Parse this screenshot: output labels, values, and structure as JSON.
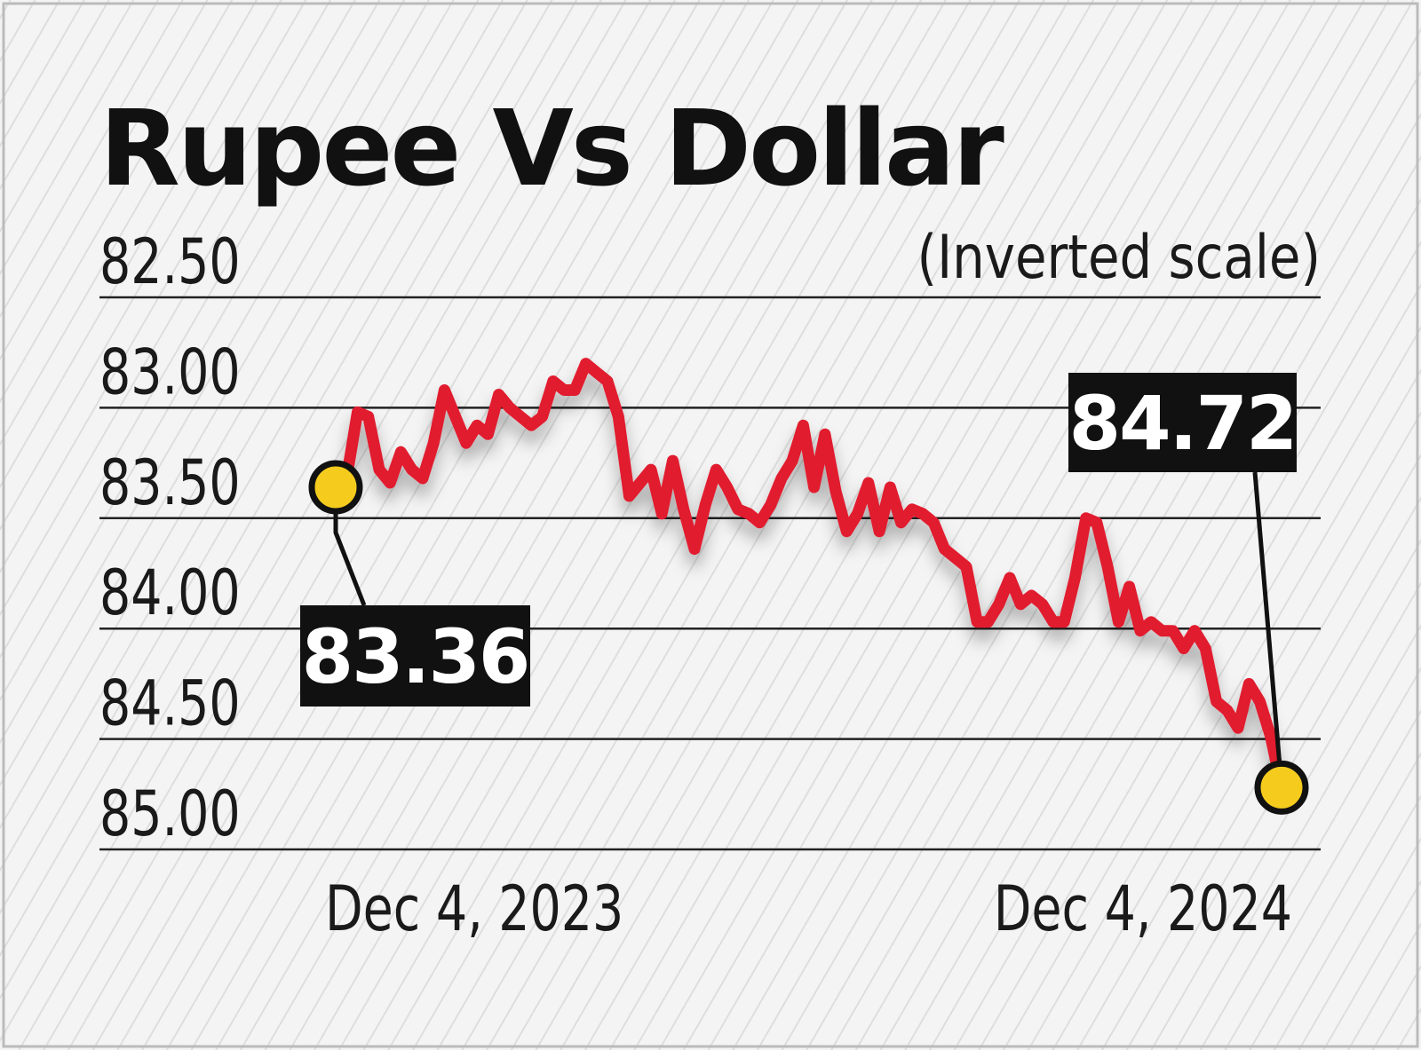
{
  "chart_data": {
    "type": "line",
    "title": "Rupee Vs Dollar",
    "subtitle": "(Inverted scale)",
    "categories": [
      "Dec 4, 2023",
      null,
      null,
      null,
      null,
      null,
      null,
      null,
      null,
      null,
      null,
      null,
      null,
      null,
      null,
      null,
      null,
      null,
      null,
      null,
      null,
      null,
      null,
      null,
      null,
      null,
      null,
      null,
      null,
      null,
      null,
      null,
      null,
      null,
      null,
      null,
      null,
      null,
      null,
      null,
      null,
      null,
      null,
      null,
      null,
      null,
      null,
      null,
      null,
      null,
      null,
      null,
      null,
      null,
      null,
      null,
      null,
      null,
      null,
      null,
      null,
      null,
      null,
      null,
      null,
      null,
      null,
      null,
      null,
      null,
      null,
      null,
      null,
      null,
      null,
      null,
      null,
      null,
      null,
      null,
      null,
      null,
      null,
      null,
      null,
      null,
      null,
      "Dec 4, 2024"
    ],
    "values": [
      83.36,
      83.32,
      83.02,
      83.04,
      83.28,
      83.34,
      83.2,
      83.28,
      83.32,
      83.16,
      82.92,
      83.04,
      83.16,
      83.08,
      83.12,
      82.94,
      83.0,
      83.04,
      83.08,
      83.04,
      82.88,
      82.92,
      82.92,
      82.8,
      82.84,
      82.88,
      83.04,
      83.4,
      83.34,
      83.28,
      83.48,
      83.24,
      83.46,
      83.64,
      83.44,
      83.28,
      83.36,
      83.46,
      83.48,
      83.52,
      83.44,
      83.32,
      83.24,
      83.08,
      83.36,
      83.12,
      83.38,
      83.56,
      83.48,
      83.34,
      83.56,
      83.36,
      83.52,
      83.46,
      83.48,
      83.52,
      83.64,
      83.68,
      83.72,
      83.97,
      83.97,
      83.89,
      83.77,
      83.89,
      83.85,
      83.89,
      83.97,
      83.97,
      83.77,
      83.5,
      83.52,
      83.72,
      83.97,
      83.81,
      84.01,
      83.97,
      84.01,
      84.01,
      84.09,
      84.01,
      84.09,
      84.33,
      84.37,
      84.45,
      84.25,
      84.33,
      84.49,
      84.72
    ],
    "color": "#e11a2f",
    "ylim": [
      85,
      82.5
    ],
    "yticks": [
      {
        "value": 82.5,
        "label": "82.50"
      },
      {
        "value": 83,
        "label": "83.00"
      },
      {
        "value": 83.5,
        "label": "83.50"
      },
      {
        "value": 84,
        "label": "84.00"
      },
      {
        "value": 84.5,
        "label": "84.50"
      },
      {
        "value": 85,
        "label": "85.00"
      }
    ],
    "grid": true
  }
}
